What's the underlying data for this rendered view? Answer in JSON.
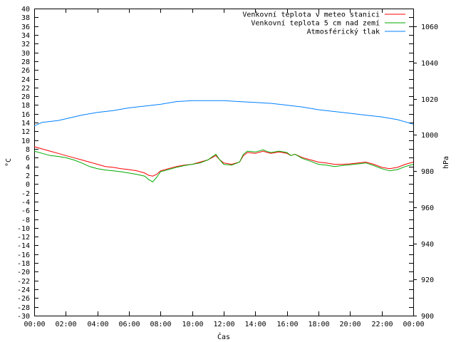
{
  "chart_data": {
    "type": "line",
    "xlabel": "Čas",
    "ylabel": "°C",
    "y2label": "hPa",
    "x_unit": "hours",
    "xlim": [
      0,
      24
    ],
    "ylim": [
      -30,
      40
    ],
    "y2lim": [
      900,
      1070
    ],
    "x_ticks": [
      0,
      2,
      4,
      6,
      8,
      10,
      12,
      14,
      16,
      18,
      20,
      22,
      24
    ],
    "x_tick_labels": [
      "00:00",
      "02:00",
      "04:00",
      "06:00",
      "08:00",
      "10:00",
      "12:00",
      "14:00",
      "16:00",
      "18:00",
      "20:00",
      "22:00",
      "00:00"
    ],
    "y_ticks": [
      -30,
      -28,
      -26,
      -24,
      -22,
      -20,
      -18,
      -16,
      -14,
      -12,
      -10,
      -8,
      -6,
      -4,
      -2,
      0,
      2,
      4,
      6,
      8,
      10,
      12,
      14,
      16,
      18,
      20,
      22,
      24,
      26,
      28,
      30,
      32,
      34,
      36,
      38,
      40
    ],
    "y2_ticks": [
      900,
      920,
      940,
      960,
      980,
      1000,
      1020,
      1040,
      1060
    ],
    "grid": false,
    "legend_position": "top-right",
    "series": [
      {
        "name": "Venkovní teplota v meteo stanici",
        "color": "#ff0000",
        "axis": "left",
        "x": [
          0,
          0.5,
          1,
          1.5,
          2,
          2.5,
          3,
          3.5,
          4,
          4.5,
          5,
          5.5,
          6,
          6.5,
          7,
          7.25,
          7.5,
          7.75,
          8,
          8.5,
          9,
          9.5,
          10,
          10.5,
          11,
          11.5,
          11.75,
          12,
          12.5,
          13,
          13.25,
          13.5,
          14,
          14.5,
          14.75,
          15,
          15.5,
          16,
          16.25,
          16.5,
          17,
          17.5,
          18,
          18.5,
          19,
          19.5,
          20,
          20.5,
          21,
          21.5,
          22,
          22.5,
          23,
          23.5,
          24
        ],
        "values": [
          8.5,
          8.0,
          7.5,
          7.0,
          6.5,
          6.0,
          5.5,
          5.0,
          4.5,
          4.0,
          3.8,
          3.5,
          3.3,
          3.0,
          2.5,
          2.0,
          1.8,
          2.2,
          3.0,
          3.5,
          4.0,
          4.3,
          4.5,
          5.0,
          5.5,
          6.5,
          5.5,
          4.8,
          4.5,
          5.0,
          6.5,
          7.2,
          7.0,
          7.5,
          7.2,
          7.0,
          7.3,
          7.0,
          6.5,
          6.8,
          6.0,
          5.5,
          5.0,
          4.8,
          4.5,
          4.5,
          4.6,
          4.8,
          5.0,
          4.5,
          3.8,
          3.5,
          3.8,
          4.5,
          5.0
        ]
      },
      {
        "name": "Venkovní teplota 5 cm nad zemí",
        "color": "#00aa00",
        "axis": "left",
        "x": [
          0,
          0.5,
          1,
          1.5,
          2,
          2.5,
          3,
          3.5,
          4,
          4.5,
          5,
          5.5,
          6,
          6.5,
          7,
          7.25,
          7.5,
          7.75,
          8,
          8.5,
          9,
          9.5,
          10,
          10.5,
          11,
          11.5,
          11.75,
          12,
          12.5,
          13,
          13.25,
          13.5,
          14,
          14.5,
          14.75,
          15,
          15.5,
          16,
          16.25,
          16.5,
          17,
          17.5,
          18,
          18.5,
          19,
          19.5,
          20,
          20.5,
          21,
          21.5,
          22,
          22.5,
          23,
          23.5,
          24
        ],
        "values": [
          7.5,
          7.0,
          6.5,
          6.3,
          6.0,
          5.5,
          4.8,
          4.0,
          3.5,
          3.2,
          3.0,
          2.8,
          2.5,
          2.2,
          1.8,
          1.0,
          0.5,
          1.5,
          2.8,
          3.3,
          3.8,
          4.2,
          4.5,
          4.8,
          5.5,
          6.8,
          5.5,
          4.5,
          4.3,
          5.0,
          6.8,
          7.5,
          7.3,
          7.8,
          7.4,
          7.2,
          7.5,
          7.2,
          6.5,
          6.8,
          5.8,
          5.2,
          4.5,
          4.3,
          4.0,
          4.2,
          4.4,
          4.6,
          4.8,
          4.2,
          3.5,
          3.0,
          3.3,
          4.0,
          4.5
        ]
      },
      {
        "name": "Atmosférický tlak",
        "color": "#0080ff",
        "axis": "right",
        "x": [
          0,
          0.5,
          1,
          1.5,
          2,
          3,
          4,
          5,
          6,
          7,
          8,
          9,
          10,
          11,
          12,
          13,
          14,
          15,
          16,
          17,
          18,
          19,
          20,
          21,
          22,
          23,
          24
        ],
        "values": [
          1005,
          1007,
          1007.5,
          1008,
          1009,
          1011,
          1012.5,
          1013.5,
          1015,
          1016,
          1017,
          1018.5,
          1019,
          1019,
          1019,
          1018.5,
          1018,
          1017.5,
          1016.5,
          1015.5,
          1014,
          1013,
          1012,
          1011,
          1010,
          1008.5,
          1006
        ]
      }
    ]
  }
}
